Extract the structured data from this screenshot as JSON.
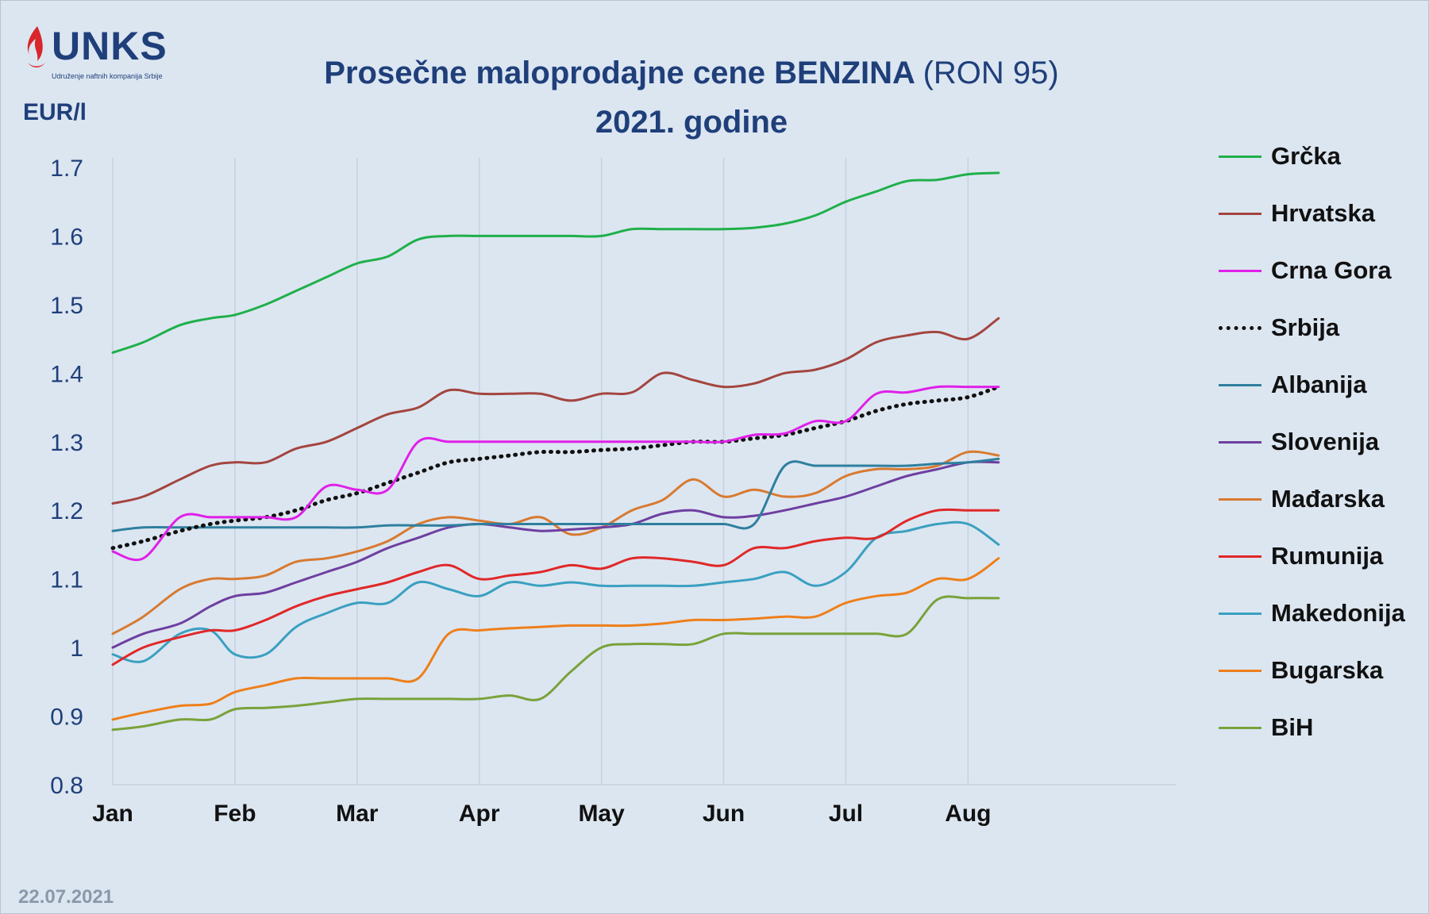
{
  "header": {
    "logo_text": "UNKS",
    "logo_subtitle": "Udruženje naftnih kompanija Srbije",
    "title_bold": "Prosečne maloprodajne cene BENZINA",
    "title_paren": "(RON 95)",
    "title_line2": "2021. godine",
    "unit_label": "EUR/l"
  },
  "footer": {
    "date": "22.07.2021"
  },
  "colors": {
    "background": "#dce6f1",
    "title": "#1f3f7a",
    "axis_text": "#1f3f7a",
    "gridline": "#c5d1de"
  },
  "chart_data": {
    "type": "line",
    "x_ticks": [
      "Jan",
      "Feb",
      "Mar",
      "Apr",
      "May",
      "Jun",
      "Jul",
      "Aug"
    ],
    "y_ticks": [
      "0.8",
      "0.9",
      "1",
      "1.1",
      "1.2",
      "1.3",
      "1.4",
      "1.5",
      "1.6",
      "1.7"
    ],
    "ylim": [
      0.8,
      1.7
    ],
    "xlim": [
      0,
      8.7
    ],
    "x_points": [
      0,
      0.25,
      0.55,
      0.8,
      1.0,
      1.25,
      1.5,
      1.75,
      2.0,
      2.25,
      2.5,
      2.75,
      3.0,
      3.25,
      3.5,
      3.75,
      4.0,
      4.25,
      4.5,
      4.75,
      5.0,
      5.25,
      5.5,
      5.75,
      6.0,
      6.25,
      6.5,
      6.75,
      7.0,
      7.25
    ],
    "grid": "vertical",
    "legend_position": "right",
    "series": [
      {
        "name": "Grčka",
        "color": "#1fb04a",
        "dash": "solid",
        "values": [
          1.43,
          1.445,
          1.47,
          1.48,
          1.485,
          1.5,
          1.52,
          1.54,
          1.56,
          1.57,
          1.595,
          1.6,
          1.6,
          1.6,
          1.6,
          1.6,
          1.6,
          1.61,
          1.61,
          1.61,
          1.61,
          1.612,
          1.618,
          1.63,
          1.65,
          1.665,
          1.68,
          1.682,
          1.69,
          1.692
        ]
      },
      {
        "name": "Hrvatska",
        "color": "#a3453f",
        "dash": "solid",
        "values": [
          1.21,
          1.22,
          1.245,
          1.265,
          1.27,
          1.27,
          1.29,
          1.3,
          1.32,
          1.34,
          1.35,
          1.375,
          1.37,
          1.37,
          1.37,
          1.36,
          1.37,
          1.372,
          1.4,
          1.39,
          1.38,
          1.385,
          1.4,
          1.405,
          1.42,
          1.445,
          1.455,
          1.46,
          1.45,
          1.48
        ]
      },
      {
        "name": "Crna Gora",
        "color": "#e020e8",
        "dash": "solid",
        "values": [
          1.14,
          1.13,
          1.19,
          1.19,
          1.19,
          1.19,
          1.19,
          1.235,
          1.23,
          1.23,
          1.3,
          1.3,
          1.3,
          1.3,
          1.3,
          1.3,
          1.3,
          1.3,
          1.3,
          1.3,
          1.3,
          1.31,
          1.312,
          1.33,
          1.33,
          1.37,
          1.372,
          1.38,
          1.38,
          1.38
        ]
      },
      {
        "name": "Srbija",
        "color": "#111111",
        "dash": "dotted",
        "values": [
          1.145,
          1.155,
          1.17,
          1.18,
          1.185,
          1.19,
          1.2,
          1.215,
          1.225,
          1.24,
          1.255,
          1.27,
          1.275,
          1.28,
          1.285,
          1.285,
          1.288,
          1.29,
          1.295,
          1.3,
          1.3,
          1.305,
          1.31,
          1.32,
          1.33,
          1.345,
          1.355,
          1.36,
          1.365,
          1.38
        ]
      },
      {
        "name": "Albanija",
        "color": "#2f7f9e",
        "dash": "solid",
        "values": [
          1.17,
          1.175,
          1.175,
          1.175,
          1.175,
          1.175,
          1.175,
          1.175,
          1.175,
          1.178,
          1.178,
          1.178,
          1.18,
          1.18,
          1.18,
          1.18,
          1.18,
          1.18,
          1.18,
          1.18,
          1.18,
          1.18,
          1.265,
          1.265,
          1.265,
          1.265,
          1.265,
          1.268,
          1.27,
          1.275
        ]
      },
      {
        "name": "Slovenija",
        "color": "#6e3fa0",
        "dash": "solid",
        "values": [
          1.0,
          1.02,
          1.035,
          1.06,
          1.075,
          1.08,
          1.095,
          1.11,
          1.125,
          1.145,
          1.16,
          1.175,
          1.18,
          1.175,
          1.17,
          1.172,
          1.175,
          1.18,
          1.195,
          1.2,
          1.19,
          1.192,
          1.2,
          1.21,
          1.22,
          1.235,
          1.25,
          1.26,
          1.27,
          1.27
        ]
      },
      {
        "name": "Mađarska",
        "color": "#d87a30",
        "dash": "solid",
        "values": [
          1.02,
          1.045,
          1.085,
          1.1,
          1.1,
          1.105,
          1.125,
          1.13,
          1.14,
          1.155,
          1.18,
          1.19,
          1.185,
          1.18,
          1.19,
          1.165,
          1.175,
          1.2,
          1.215,
          1.245,
          1.22,
          1.23,
          1.22,
          1.225,
          1.25,
          1.26,
          1.26,
          1.265,
          1.285,
          1.28
        ]
      },
      {
        "name": "Rumunija",
        "color": "#e02828",
        "dash": "solid",
        "values": [
          0.975,
          1.0,
          1.015,
          1.025,
          1.025,
          1.04,
          1.06,
          1.075,
          1.085,
          1.095,
          1.11,
          1.12,
          1.1,
          1.105,
          1.11,
          1.12,
          1.115,
          1.13,
          1.13,
          1.125,
          1.12,
          1.145,
          1.145,
          1.155,
          1.16,
          1.16,
          1.185,
          1.2,
          1.2,
          1.2
        ]
      },
      {
        "name": "Makedonija",
        "color": "#3aa0c0",
        "dash": "solid",
        "values": [
          0.99,
          0.98,
          1.02,
          1.025,
          0.99,
          0.99,
          1.03,
          1.05,
          1.065,
          1.065,
          1.095,
          1.085,
          1.075,
          1.095,
          1.09,
          1.095,
          1.09,
          1.09,
          1.09,
          1.09,
          1.095,
          1.1,
          1.11,
          1.09,
          1.11,
          1.16,
          1.17,
          1.18,
          1.18,
          1.15
        ]
      },
      {
        "name": "Bugarska",
        "color": "#ee7f1a",
        "dash": "solid",
        "values": [
          0.895,
          0.905,
          0.915,
          0.918,
          0.935,
          0.945,
          0.955,
          0.955,
          0.955,
          0.955,
          0.955,
          1.02,
          1.025,
          1.028,
          1.03,
          1.032,
          1.032,
          1.032,
          1.035,
          1.04,
          1.04,
          1.042,
          1.045,
          1.045,
          1.065,
          1.075,
          1.08,
          1.1,
          1.1,
          1.13
        ]
      },
      {
        "name": "BiH",
        "color": "#7aa23a",
        "dash": "solid",
        "values": [
          0.88,
          0.885,
          0.895,
          0.895,
          0.91,
          0.912,
          0.915,
          0.92,
          0.925,
          0.925,
          0.925,
          0.925,
          0.925,
          0.93,
          0.925,
          0.965,
          1.0,
          1.005,
          1.005,
          1.005,
          1.02,
          1.02,
          1.02,
          1.02,
          1.02,
          1.02,
          1.02,
          1.07,
          1.072,
          1.072
        ]
      }
    ]
  }
}
